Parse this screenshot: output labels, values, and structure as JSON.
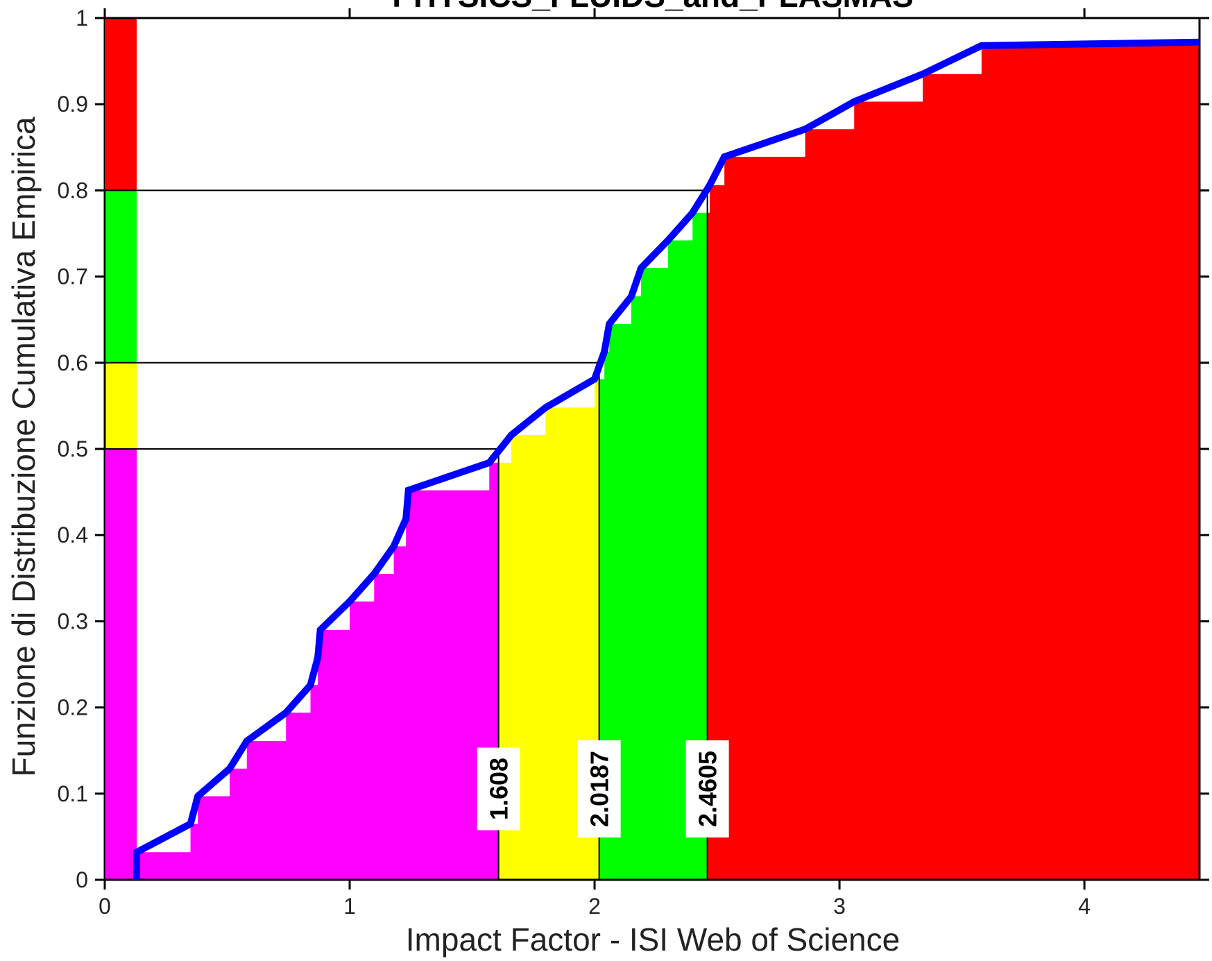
{
  "chart_data": {
    "type": "area",
    "title": "PHYSICS_FLUIDS_and_PLASMAS",
    "xlabel": "Impact Factor - ISI Web of Science",
    "ylabel": "Funzione di Distribuzione Cumulativa Empirica",
    "xlim": [
      0,
      4.47
    ],
    "ylim": [
      0,
      1
    ],
    "xticks": [
      0,
      1,
      2,
      3,
      4
    ],
    "xtick_labels": [
      "0",
      "1",
      "2",
      "3",
      "4"
    ],
    "yticks": [
      0,
      0.1,
      0.2,
      0.3,
      0.4,
      0.5,
      0.6,
      0.7,
      0.8,
      0.9,
      1
    ],
    "ytick_labels": [
      "0",
      "0.1",
      "0.2",
      "0.3",
      "0.4",
      "0.5",
      "0.6",
      "0.7",
      "0.8",
      "0.9",
      "1"
    ],
    "grid": false,
    "thresholds": [
      {
        "x": 1.608,
        "y": 0.5,
        "label": "1.608"
      },
      {
        "x": 2.0187,
        "y": 0.6,
        "label": "2.0187"
      },
      {
        "x": 2.4605,
        "y": 0.8,
        "label": "2.4605"
      }
    ],
    "quartile_bands": [
      {
        "from": 0.0,
        "to": 0.5,
        "color": "#ff00ff"
      },
      {
        "from": 0.5,
        "to": 0.6,
        "color": "#ffff00"
      },
      {
        "from": 0.6,
        "to": 0.8,
        "color": "#00ff00"
      },
      {
        "from": 0.8,
        "to": 1.0,
        "color": "#ff0000"
      }
    ],
    "colors": {
      "magenta": "#ff00ff",
      "yellow": "#ffff00",
      "green": "#00ff00",
      "red": "#ff0000",
      "cdf_line": "#0000ff"
    },
    "ecdf_steps": [
      {
        "x": 0.13,
        "y": 0.032
      },
      {
        "x": 0.35,
        "y": 0.065
      },
      {
        "x": 0.38,
        "y": 0.097
      },
      {
        "x": 0.51,
        "y": 0.129
      },
      {
        "x": 0.58,
        "y": 0.161
      },
      {
        "x": 0.74,
        "y": 0.194
      },
      {
        "x": 0.84,
        "y": 0.226
      },
      {
        "x": 0.87,
        "y": 0.258
      },
      {
        "x": 0.88,
        "y": 0.29
      },
      {
        "x": 1.0,
        "y": 0.323
      },
      {
        "x": 1.1,
        "y": 0.355
      },
      {
        "x": 1.18,
        "y": 0.387
      },
      {
        "x": 1.23,
        "y": 0.419
      },
      {
        "x": 1.24,
        "y": 0.452
      },
      {
        "x": 1.57,
        "y": 0.484
      },
      {
        "x": 1.66,
        "y": 0.516
      },
      {
        "x": 1.8,
        "y": 0.548
      },
      {
        "x": 2.0,
        "y": 0.581
      },
      {
        "x": 2.04,
        "y": 0.613
      },
      {
        "x": 2.06,
        "y": 0.645
      },
      {
        "x": 2.15,
        "y": 0.677
      },
      {
        "x": 2.19,
        "y": 0.71
      },
      {
        "x": 2.3,
        "y": 0.742
      },
      {
        "x": 2.4,
        "y": 0.774
      },
      {
        "x": 2.47,
        "y": 0.806
      },
      {
        "x": 2.53,
        "y": 0.839
      },
      {
        "x": 2.86,
        "y": 0.871
      },
      {
        "x": 3.06,
        "y": 0.903
      },
      {
        "x": 3.34,
        "y": 0.935
      },
      {
        "x": 3.58,
        "y": 0.968
      }
    ],
    "line_end": {
      "x": 4.47,
      "y": 0.972
    }
  }
}
